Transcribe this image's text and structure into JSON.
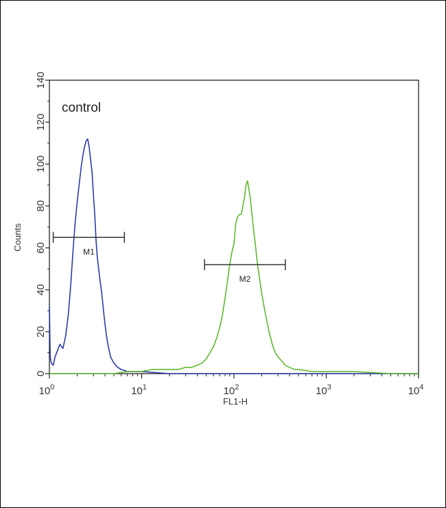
{
  "chart_data": {
    "type": "line",
    "title": "",
    "xlabel": "FL1-H",
    "ylabel": "Counts",
    "x_scale": "log",
    "xlim": [
      1,
      10000
    ],
    "ylim": [
      0,
      140
    ],
    "x_ticks": [
      {
        "value": 1,
        "base": "10",
        "exp": "0"
      },
      {
        "value": 10,
        "base": "10",
        "exp": "1"
      },
      {
        "value": 100,
        "base": "10",
        "exp": "2"
      },
      {
        "value": 1000,
        "base": "10",
        "exp": "3"
      },
      {
        "value": 10000,
        "base": "10",
        "exp": "4"
      }
    ],
    "y_ticks": [
      0,
      20,
      40,
      60,
      80,
      100,
      120,
      140
    ],
    "grid": false,
    "annotation": "control",
    "series": [
      {
        "color": "#2b3aa8",
        "x": [
          1.0,
          1.02,
          1.05,
          1.1,
          1.15,
          1.2,
          1.3,
          1.4,
          1.5,
          1.6,
          1.7,
          1.8,
          1.9,
          2.0,
          2.1,
          2.2,
          2.3,
          2.4,
          2.5,
          2.6,
          2.7,
          2.8,
          2.9,
          3.0,
          3.1,
          3.2,
          3.3,
          3.5,
          3.7,
          3.9,
          4.1,
          4.3,
          4.6,
          5.0,
          5.5,
          6.0,
          7.0,
          8.0,
          10,
          20,
          50,
          100,
          500,
          1000,
          10000
        ],
        "y": [
          32,
          8,
          5,
          4,
          8,
          10,
          14,
          12,
          18,
          28,
          42,
          58,
          72,
          82,
          90,
          98,
          104,
          108,
          111,
          112,
          108,
          102,
          96,
          85,
          76,
          64,
          56,
          46,
          38,
          28,
          20,
          14,
          8,
          5,
          3,
          2,
          1,
          1,
          1,
          0,
          0,
          0,
          0,
          0,
          0
        ]
      },
      {
        "color": "#5fb832",
        "x": [
          1.0,
          2.0,
          5.0,
          7.0,
          10,
          13,
          16,
          20,
          25,
          30,
          35,
          40,
          45,
          50,
          55,
          60,
          65,
          70,
          75,
          80,
          85,
          90,
          95,
          100,
          105,
          110,
          115,
          120,
          125,
          130,
          135,
          140,
          145,
          150,
          160,
          170,
          180,
          190,
          200,
          210,
          220,
          240,
          260,
          280,
          300,
          330,
          360,
          400,
          450,
          500,
          700,
          1000,
          2000,
          5000,
          10000
        ],
        "y": [
          0,
          0,
          0,
          1,
          1,
          2,
          2,
          2,
          2,
          3,
          3,
          4,
          5,
          7,
          10,
          13,
          17,
          22,
          28,
          36,
          44,
          52,
          58,
          62,
          72,
          75,
          76,
          76,
          80,
          84,
          90,
          92,
          88,
          84,
          72,
          62,
          52,
          45,
          38,
          33,
          28,
          20,
          14,
          10,
          8,
          6,
          4,
          3,
          2,
          2,
          1,
          1,
          1,
          0,
          0
        ]
      }
    ],
    "markers": [
      {
        "label": "M1",
        "x_start": 1.1,
        "x_end": 6.5,
        "y": 65
      },
      {
        "label": "M2",
        "x_start": 48,
        "x_end": 360,
        "y": 52
      }
    ]
  }
}
